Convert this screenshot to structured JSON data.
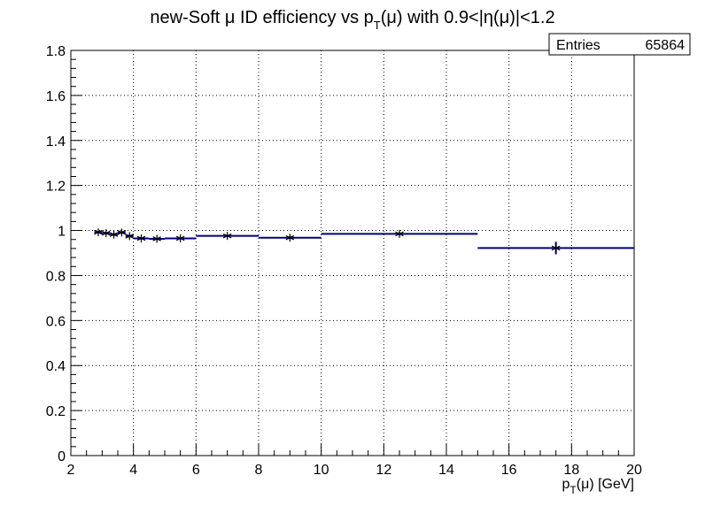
{
  "chart_data": {
    "type": "histogram",
    "title": {
      "pre": "new-Soft μ ID efficiency vs p",
      "sub": "T",
      "post": "(μ) with 0.9<|η(μ)|<1.2"
    },
    "xlabel": {
      "pre": "p",
      "sub": "T",
      "post": "(μ) [GeV]"
    },
    "ylabel": "",
    "xlim": [
      2,
      20
    ],
    "ylim": [
      0,
      1.8
    ],
    "x_ticks": [
      2,
      4,
      6,
      8,
      10,
      12,
      14,
      16,
      18,
      20
    ],
    "y_ticks": [
      0,
      0.2,
      0.4,
      0.6,
      0.8,
      1,
      1.2,
      1.4,
      1.6,
      1.8
    ],
    "x_tick_labels": [
      "2",
      "4",
      "6",
      "8",
      "10",
      "12",
      "14",
      "16",
      "18",
      "20"
    ],
    "y_tick_labels": [
      "0",
      "0.2",
      "0.4",
      "0.6",
      "0.8",
      "1",
      "1.2",
      "1.4",
      "1.6",
      "1.8"
    ],
    "grid": true,
    "stats": {
      "label": "Entries",
      "value": "65864"
    },
    "bins": [
      {
        "xlo": 2.75,
        "xhi": 3.0,
        "y": 0.992,
        "err": 0.006
      },
      {
        "xlo": 3.0,
        "xhi": 3.25,
        "y": 0.988,
        "err": 0.006
      },
      {
        "xlo": 3.25,
        "xhi": 3.5,
        "y": 0.982,
        "err": 0.006
      },
      {
        "xlo": 3.5,
        "xhi": 3.75,
        "y": 0.991,
        "err": 0.006
      },
      {
        "xlo": 3.75,
        "xhi": 4.0,
        "y": 0.975,
        "err": 0.006
      },
      {
        "xlo": 4.0,
        "xhi": 4.5,
        "y": 0.965,
        "err": 0.005
      },
      {
        "xlo": 4.5,
        "xhi": 5.0,
        "y": 0.963,
        "err": 0.005
      },
      {
        "xlo": 5.0,
        "xhi": 6.0,
        "y": 0.965,
        "err": 0.005
      },
      {
        "xlo": 6.0,
        "xhi": 8.0,
        "y": 0.976,
        "err": 0.005
      },
      {
        "xlo": 8.0,
        "xhi": 10.0,
        "y": 0.968,
        "err": 0.006
      },
      {
        "xlo": 10.0,
        "xhi": 15.0,
        "y": 0.985,
        "err": 0.006
      },
      {
        "xlo": 15.0,
        "xhi": 20.0,
        "y": 0.922,
        "err": 0.028
      }
    ],
    "colors": {
      "line": "#000080",
      "marker": "#000000",
      "grid": "#000000",
      "frame": "#000000"
    }
  }
}
